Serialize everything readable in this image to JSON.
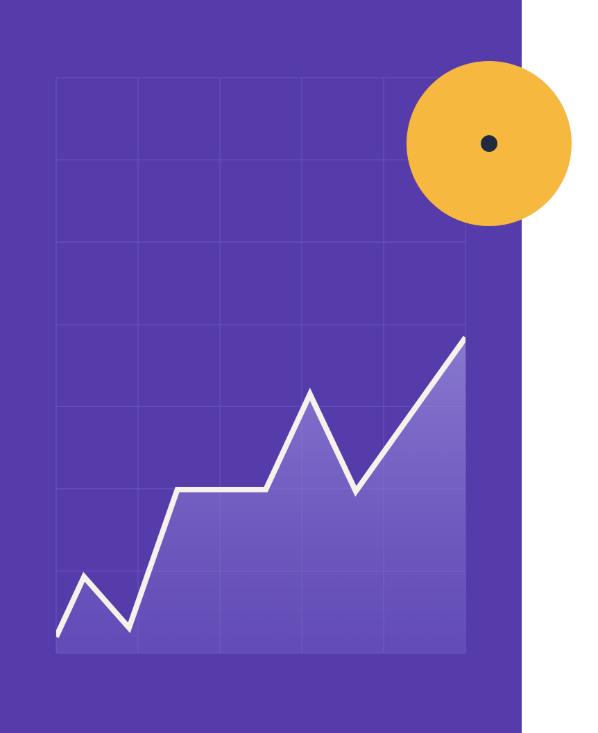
{
  "colors": {
    "panel": "#563bab",
    "grid": "#7563c4",
    "line": "#f7f1ec",
    "area": "#8a7bd3",
    "badge": "#f6b83f",
    "badge_dot": "#202a40",
    "background": "#ffffff"
  },
  "badge": {
    "icon": "target-dot-icon"
  },
  "chart_data": {
    "type": "area",
    "title": "",
    "xlabel": "",
    "ylabel": "",
    "grid": true,
    "grid_columns": 5,
    "grid_rows": 7,
    "xlim": [
      0,
      5
    ],
    "ylim": [
      0,
      7
    ],
    "series": [
      {
        "x": [
          0,
          0.34,
          0.89,
          1.48,
          2.56,
          3.1,
          3.66,
          5.0
        ],
        "y": [
          0.2,
          0.93,
          0.31,
          1.99,
          1.99,
          3.15,
          1.97,
          3.84
        ]
      }
    ]
  }
}
